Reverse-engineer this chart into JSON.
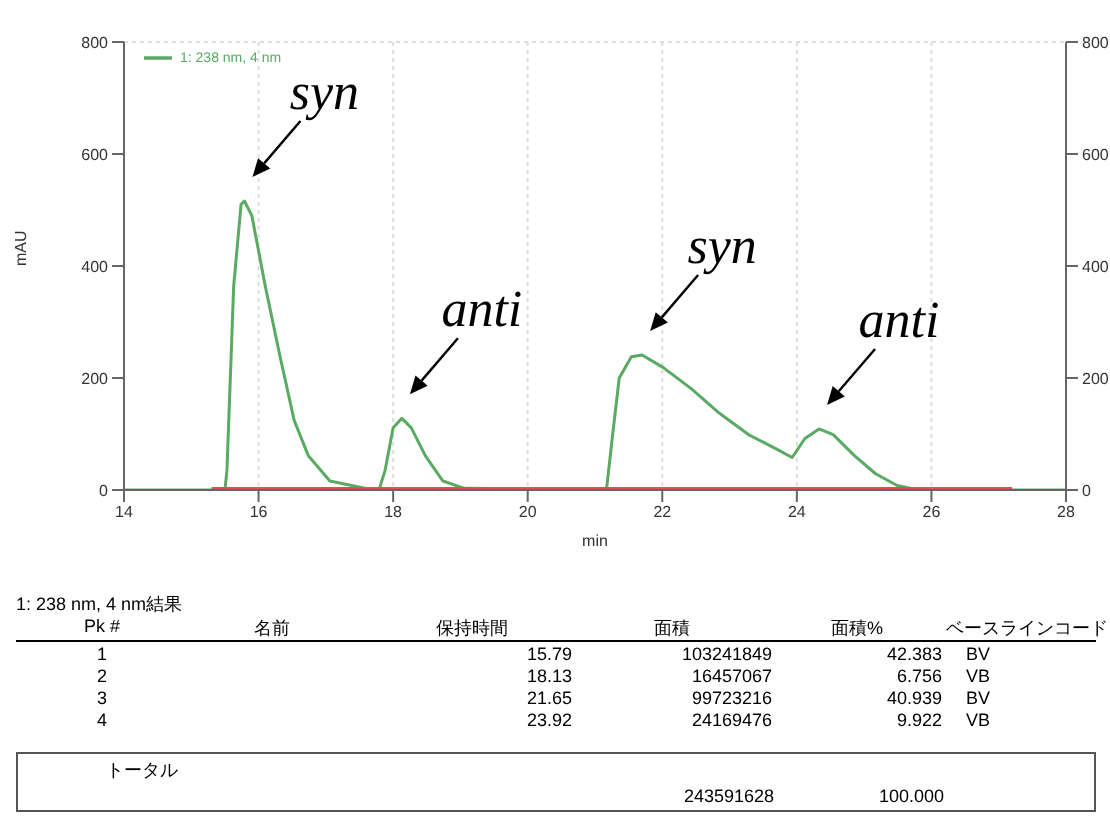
{
  "chart_data": {
    "type": "line",
    "xlabel": "min",
    "ylabel": "mAU",
    "xlim": [
      14,
      28
    ],
    "xticks": [
      14,
      16,
      18,
      20,
      22,
      24,
      26,
      28
    ],
    "ylim": [
      0,
      800
    ],
    "yticks": [
      0,
      200,
      400,
      600,
      800
    ],
    "y2lim": [
      0,
      800
    ],
    "y2ticks": [
      0,
      200,
      400,
      600,
      800
    ],
    "grid": true,
    "legend": "top left",
    "series": [
      {
        "name": "1: 238 nm, 4 nm",
        "color": "#5aaa64",
        "x": [
          14,
          15.5,
          15.53,
          15.63,
          15.74,
          15.79,
          15.9,
          16.1,
          16.32,
          16.53,
          16.74,
          17.06,
          17.58,
          17.79,
          17.88,
          18.0,
          18.13,
          18.27,
          18.48,
          18.74,
          19.06,
          21.17,
          21.25,
          21.36,
          21.54,
          21.7,
          22.01,
          22.43,
          22.85,
          23.28,
          23.7,
          23.93,
          24.12,
          24.33,
          24.54,
          24.86,
          25.17,
          25.49,
          25.81,
          28
        ],
        "values": [
          0,
          0,
          35,
          364,
          510,
          516,
          490,
          364,
          238,
          124,
          61,
          16,
          3,
          0,
          35,
          111,
          128,
          111,
          61,
          16,
          3,
          0,
          86,
          200,
          238,
          241,
          219,
          181,
          137,
          99,
          73,
          58,
          92,
          109,
          99,
          61,
          29,
          8,
          0,
          0
        ]
      },
      {
        "color": "#e05050",
        "x": [
          15.3,
          27.2
        ],
        "values": [
          0,
          0
        ]
      }
    ],
    "annotations": [
      {
        "text": "syn",
        "x": 15.79,
        "y": 516
      },
      {
        "text": "anti",
        "x": 18.13,
        "y": 128
      },
      {
        "text": "syn",
        "x": 21.7,
        "y": 241
      },
      {
        "text": "anti",
        "x": 24.33,
        "y": 109
      },
      "1: 238 nm, 4 nm結果",
      "Pk #",
      "名前",
      "保持時間",
      "面積",
      "面積%",
      "ベースラインコード",
      "1",
      "15.79",
      "103241849",
      "42.383",
      "BV",
      "2",
      "18.13",
      "16457067",
      "6.756",
      "VB",
      "3",
      "21.65",
      "99723216",
      "40.939",
      "BV",
      "4",
      "23.92",
      "24169476",
      "9.922",
      "VB",
      "トータル",
      "243591628",
      "100.000"
    ]
  }
}
